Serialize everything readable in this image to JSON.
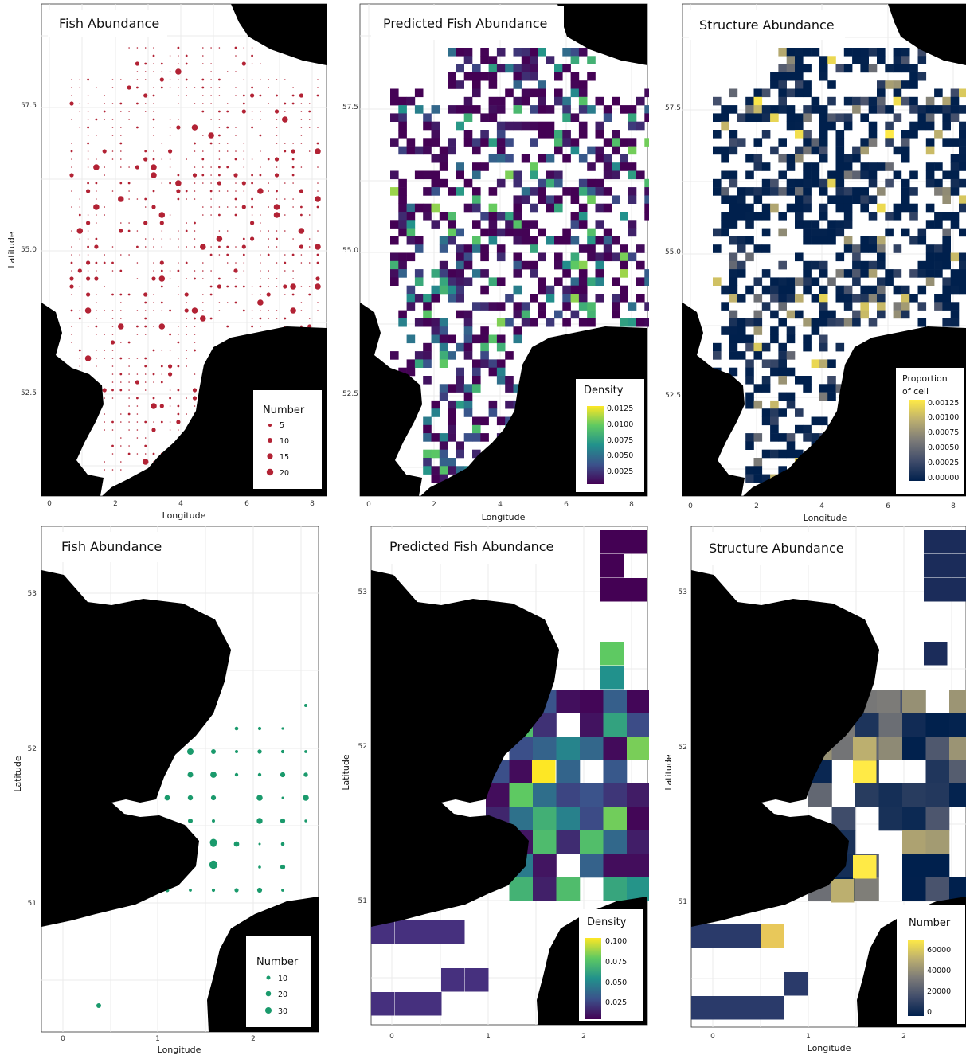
{
  "panels": [
    {
      "id": "p1",
      "title": "Fish Abundance",
      "xlabel": "Longitude",
      "ylabel": "Latitude",
      "xticks": [
        "0",
        "2",
        "4",
        "6",
        "8"
      ],
      "yticks": [
        "57.5",
        "55.0",
        "52.5"
      ],
      "legend": {
        "title": "Number",
        "items": [
          "5",
          "10",
          "15",
          "20"
        ]
      }
    },
    {
      "id": "p2",
      "title": "Predicted Fish Abundance",
      "xlabel": "Longitude",
      "ylabel": "",
      "xticks": [
        "0",
        "2",
        "4",
        "6",
        "8"
      ],
      "yticks": [
        "57.5",
        "55.0",
        "52.5"
      ],
      "legend": {
        "title": "Density",
        "items": [
          "0.0125",
          "0.0100",
          "0.0075",
          "0.0050",
          "0.0025"
        ]
      }
    },
    {
      "id": "p3",
      "title": "Structure Abundance",
      "xlabel": "Longitude",
      "ylabel": "",
      "xticks": [
        "0",
        "2",
        "4",
        "6",
        "8"
      ],
      "yticks": [
        "57.5",
        "55.0",
        "52.5"
      ],
      "legend": {
        "title": "Proportion",
        "title2": "of cell",
        "items": [
          "0.00125",
          "0.00100",
          "0.00075",
          "0.00050",
          "0.00025",
          "0.00000"
        ]
      }
    },
    {
      "id": "p4",
      "title": "Fish Abundance",
      "xlabel": "Longitude",
      "ylabel": "Latitude",
      "xticks": [
        "0",
        "1",
        "2"
      ],
      "yticks": [
        "53",
        "52",
        "51"
      ],
      "legend": {
        "title": "Number",
        "items": [
          "10",
          "20",
          "30"
        ]
      }
    },
    {
      "id": "p5",
      "title": "Predicted Fish Abundance",
      "xlabel": "",
      "ylabel": "Latitude",
      "xticks": [
        "0",
        "1",
        "2"
      ],
      "yticks": [
        "53",
        "52",
        "51"
      ],
      "legend": {
        "title": "Density",
        "items": [
          "0.100",
          "0.075",
          "0.050",
          "0.025"
        ]
      }
    },
    {
      "id": "p6",
      "title": "Structure Abundance",
      "xlabel": "Longitude",
      "ylabel": "Latitude",
      "xticks": [
        "0",
        "1",
        "2"
      ],
      "yticks": [
        "53",
        "52",
        "51"
      ],
      "legend": {
        "title": "Number",
        "items": [
          "60000",
          "40000",
          "20000",
          "0"
        ]
      }
    }
  ],
  "colors": {
    "fish_points_north_sea": "#b22234",
    "fish_points_thames": "#1a9a6c",
    "land": "#000000",
    "viridis": [
      "#440154",
      "#3b528b",
      "#21918c",
      "#5ec962",
      "#fde725"
    ],
    "cividis": [
      "#00204d",
      "#414d6b",
      "#7c7b78",
      "#bcaf6f",
      "#ffea46"
    ]
  }
}
